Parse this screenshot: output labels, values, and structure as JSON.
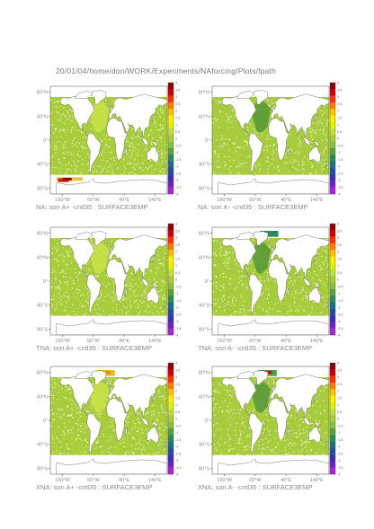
{
  "page": {
    "title": "20/01/04/home/don/WORK/Experiments/NAforcing/Plots/fpath"
  },
  "colors": {
    "ocean_main": "#a8cc3c",
    "ocean_light": "#c6e048",
    "ocean_dark": "#5d9c3a",
    "land": "#ffffff",
    "coast": "#6a6a6a",
    "frame": "#4a4a4a"
  },
  "colorbar": {
    "labels": [
      "4",
      "3.5",
      "3",
      "2.5",
      "2",
      "1.5",
      "1",
      "0.5",
      "0",
      "-0.5",
      "-1",
      "-1.5",
      "-2",
      "-2.5",
      "-3",
      "-3.5",
      "-4"
    ],
    "colors": [
      "#8b0000",
      "#cc0000",
      "#ff3000",
      "#ff7a00",
      "#ffc000",
      "#ffee00",
      "#e0f000",
      "#c0e040",
      "#a8cc3c",
      "#8ac040",
      "#5aa040",
      "#2a8a5a",
      "#1a7080",
      "#2050a0",
      "#3a30b0",
      "#7020c0",
      "#b020d8"
    ]
  },
  "chart_data": [
    {
      "type": "heatmap",
      "caption": "NA: son A+ -cntl35 : SURFACE3EMP",
      "yticks": [
        "80°N",
        "40°N",
        "0°",
        "40°S",
        "80°S"
      ],
      "xticks": [
        "160°W",
        "60°W",
        "40°E",
        "140°E"
      ],
      "pattern": "light",
      "features": [
        "north-atlantic-positive",
        "southern-red"
      ]
    },
    {
      "type": "heatmap",
      "caption": "NA: son A- -cntl35 : SURFACE3EMP",
      "yticks": [
        "80°N",
        "40°N",
        "0°",
        "40°S",
        "80°S"
      ],
      "xticks": [
        "160°W",
        "60°W",
        "40°E",
        "140°E"
      ],
      "pattern": "dark",
      "features": [
        "north-atlantic-negative"
      ]
    },
    {
      "type": "heatmap",
      "caption": "TNA: son A+ -cntl35 : SURFACE3EMP",
      "yticks": [
        "80°N",
        "40°N",
        "0°",
        "40°S",
        "80°S"
      ],
      "xticks": [
        "160°W",
        "60°W",
        "40°E",
        "140°E"
      ],
      "pattern": "light",
      "features": [
        "tropical-atlantic-positive"
      ]
    },
    {
      "type": "heatmap",
      "caption": "TNA: son A- -cntl35 : SURFACE3EMP",
      "yticks": [
        "80°N",
        "40°N",
        "0°",
        "40°S",
        "80°S"
      ],
      "xticks": [
        "160°W",
        "60°W",
        "40°E",
        "140°E"
      ],
      "pattern": "dark",
      "features": [
        "tropical-atlantic-negative",
        "arctic-teal"
      ]
    },
    {
      "type": "heatmap",
      "caption": "XNA: son A+ -cntl35 : SURFACE3EMP",
      "yticks": [
        "80°N",
        "40°N",
        "0°",
        "40°S",
        "80°S"
      ],
      "xticks": [
        "160°W",
        "60°W",
        "40°E",
        "140°E"
      ],
      "pattern": "light",
      "features": [
        "extratropical-positive",
        "arctic-orange"
      ]
    },
    {
      "type": "heatmap",
      "caption": "XNA: son A- -cntl35 : SURFACE3EMP",
      "yticks": [
        "80°N",
        "40°N",
        "0°",
        "40°S",
        "80°S"
      ],
      "xticks": [
        "160°W",
        "60°W",
        "40°E",
        "140°E"
      ],
      "pattern": "dark",
      "features": [
        "extratropical-negative",
        "arctic-red"
      ]
    }
  ]
}
